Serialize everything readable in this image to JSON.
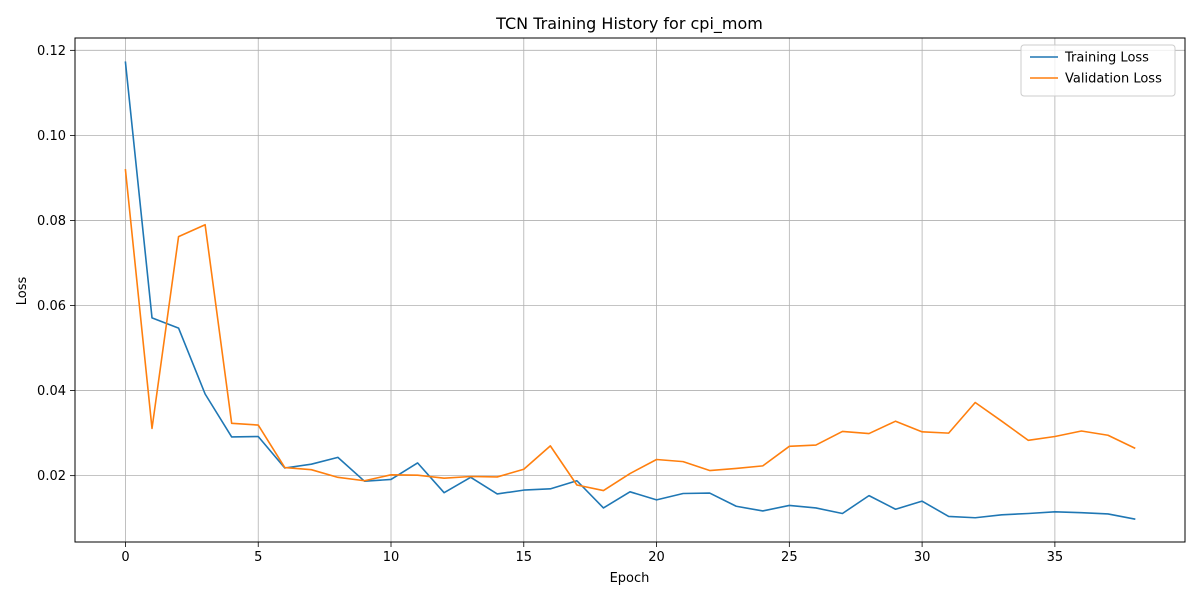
{
  "chart_data": {
    "type": "line",
    "title": "TCN Training History for cpi_mom",
    "xlabel": "Epoch",
    "ylabel": "Loss",
    "xlim": [
      -1.9,
      39.9
    ],
    "ylim": [
      0.0044,
      0.1229
    ],
    "xticks": [
      0,
      5,
      10,
      15,
      20,
      25,
      30,
      35
    ],
    "yticks": [
      0.02,
      0.04,
      0.06,
      0.08,
      0.1,
      0.12
    ],
    "ytick_labels": [
      "0.02",
      "0.04",
      "0.06",
      "0.08",
      "0.10",
      "0.12"
    ],
    "grid": true,
    "legend_position": "top-right",
    "x": [
      0,
      1,
      2,
      3,
      4,
      5,
      6,
      7,
      8,
      9,
      10,
      11,
      12,
      13,
      14,
      15,
      16,
      17,
      18,
      19,
      20,
      21,
      22,
      23,
      24,
      25,
      26,
      27,
      28,
      29,
      30,
      31,
      32,
      33,
      34,
      35,
      36,
      37,
      38
    ],
    "series": [
      {
        "name": "Training Loss",
        "color": "#1f77b4",
        "values": [
          0.1172,
          0.0571,
          0.0547,
          0.0392,
          0.0291,
          0.0292,
          0.0218,
          0.0227,
          0.0243,
          0.0187,
          0.0191,
          0.023,
          0.016,
          0.0196,
          0.0157,
          0.0166,
          0.0169,
          0.0188,
          0.0124,
          0.0162,
          0.0143,
          0.0158,
          0.0159,
          0.0128,
          0.0117,
          0.013,
          0.0124,
          0.0111,
          0.0153,
          0.0121,
          0.014,
          0.0104,
          0.0101,
          0.0108,
          0.0111,
          0.0115,
          0.0113,
          0.011,
          0.0098
        ]
      },
      {
        "name": "Validation Loss",
        "color": "#ff7f0e",
        "values": [
          0.0919,
          0.0311,
          0.0762,
          0.079,
          0.0323,
          0.0319,
          0.0219,
          0.0214,
          0.0196,
          0.0188,
          0.0202,
          0.0201,
          0.0194,
          0.0198,
          0.0197,
          0.0215,
          0.027,
          0.0178,
          0.0165,
          0.0205,
          0.0238,
          0.0233,
          0.0212,
          0.0217,
          0.0223,
          0.0269,
          0.0272,
          0.0304,
          0.0299,
          0.0328,
          0.0303,
          0.03,
          0.0372,
          0.0328,
          0.0283,
          0.0292,
          0.0305,
          0.0295,
          0.0265
        ]
      }
    ]
  }
}
